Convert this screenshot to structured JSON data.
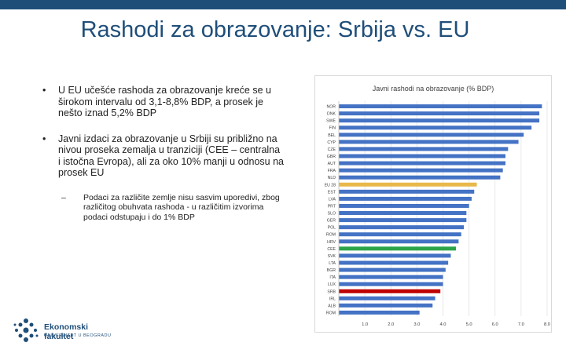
{
  "slide": {
    "title": "Rashodi za obrazovanje: Srbija vs. EU",
    "bullets": [
      "U EU učešće rashoda za obrazovanje kreće se u širokom intervalu od 3,1-8,8% BDP, a prosek je nešto iznad 5,2% BDP",
      "Javni izdaci za obrazovanje u Srbiji su približno na nivou proseka zemalja u tranziciji (CEE – centralna i istočna Evropa), ali za oko 10% manji u odnosu na prosek EU"
    ],
    "sub_dash": "–",
    "sub_bullet": "Podaci za različite zemlje nisu sasvim uporedivi, zbog različitog obuhvata rashoda - u različitim izvorima podaci odstupaju i do 1% BDP"
  },
  "logo": {
    "name": "Ekonomski fakultet",
    "subtitle": "UNIVERZITET U BEOGRADU",
    "dot_color": "#1f4e79"
  },
  "chart_data": {
    "type": "bar",
    "orientation": "horizontal",
    "title": "Javni rashodi na obrazovanje (% BDP)",
    "categories": [
      "NOR",
      "DNK",
      "SWE",
      "FIN",
      "BEL",
      "CYP",
      "CZE",
      "GBR",
      "AUT",
      "FRA",
      "NLD",
      "EU 28",
      "EST",
      "LVA",
      "PRT",
      "SLO",
      "GER",
      "POL",
      "ROM",
      "HRV",
      "CEE",
      "SVK",
      "LTA",
      "BGR",
      "ITA",
      "LUX",
      "SRB",
      "IRL",
      "ALB",
      "ROM"
    ],
    "values": [
      7.8,
      7.7,
      7.7,
      7.4,
      7.1,
      6.9,
      6.5,
      6.4,
      6.4,
      6.3,
      6.2,
      5.3,
      5.2,
      5.1,
      5.0,
      4.9,
      4.9,
      4.8,
      4.7,
      4.6,
      4.5,
      4.3,
      4.2,
      4.1,
      4.0,
      4.0,
      3.9,
      3.7,
      3.6,
      3.1
    ],
    "highlights": {
      "EU 28": "#e8b84a",
      "CEE": "#2ca44a",
      "SRB": "#c00000"
    },
    "bar_color": "#4472c4",
    "xlim": [
      0,
      8.0
    ],
    "xticks": [
      "1.0",
      "2.0",
      "3.0",
      "4.0",
      "5.0",
      "6.0",
      "7.0",
      "8.0"
    ],
    "grid": true
  }
}
